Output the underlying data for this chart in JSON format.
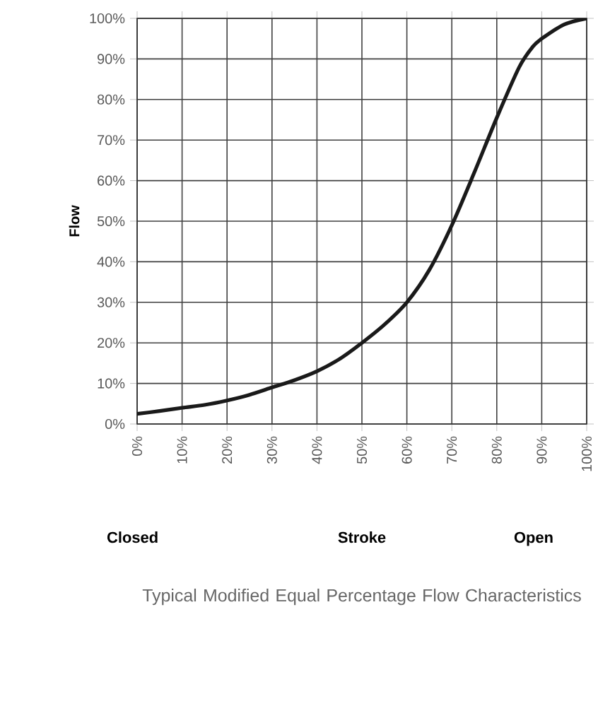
{
  "chart_data": {
    "type": "line",
    "title": "Typical Modified Equal Percentage Flow Characteristics",
    "xlabel": "Stroke",
    "ylabel": "Flow",
    "annotations": [
      "Closed",
      "Open"
    ],
    "x": [
      0,
      5,
      10,
      15,
      20,
      25,
      30,
      35,
      40,
      45,
      50,
      55,
      60,
      65,
      70,
      75,
      80,
      85,
      88,
      90,
      95,
      100
    ],
    "series": [
      {
        "color": "#1a1a1a",
        "values": [
          2.5,
          3.2,
          4,
          4.7,
          5.8,
          7.2,
          9,
          10.8,
          13,
          16,
          20,
          24.5,
          30,
          38,
          49,
          62,
          75.5,
          88,
          93,
          95,
          98.5,
          100
        ]
      }
    ],
    "xlim": [
      0,
      100
    ],
    "ylim": [
      0,
      100
    ],
    "xticks": [
      {
        "value": 0,
        "label": "0%"
      },
      {
        "value": 10,
        "label": "10%"
      },
      {
        "value": 20,
        "label": "20%"
      },
      {
        "value": 30,
        "label": "30%"
      },
      {
        "value": 40,
        "label": "40%"
      },
      {
        "value": 50,
        "label": "50%"
      },
      {
        "value": 60,
        "label": "60%"
      },
      {
        "value": 70,
        "label": "70%"
      },
      {
        "value": 80,
        "label": "80%"
      },
      {
        "value": 90,
        "label": "90%"
      },
      {
        "value": 100,
        "label": "100%"
      }
    ],
    "yticks": [
      {
        "value": 0,
        "label": "0%"
      },
      {
        "value": 10,
        "label": "10%"
      },
      {
        "value": 20,
        "label": "20%"
      },
      {
        "value": 30,
        "label": "30%"
      },
      {
        "value": 40,
        "label": "40%"
      },
      {
        "value": 50,
        "label": "50%"
      },
      {
        "value": 60,
        "label": "60%"
      },
      {
        "value": 70,
        "label": "70%"
      },
      {
        "value": 80,
        "label": "80%"
      },
      {
        "value": 90,
        "label": "90%"
      },
      {
        "value": 100,
        "label": "100%"
      }
    ],
    "grid": true
  }
}
